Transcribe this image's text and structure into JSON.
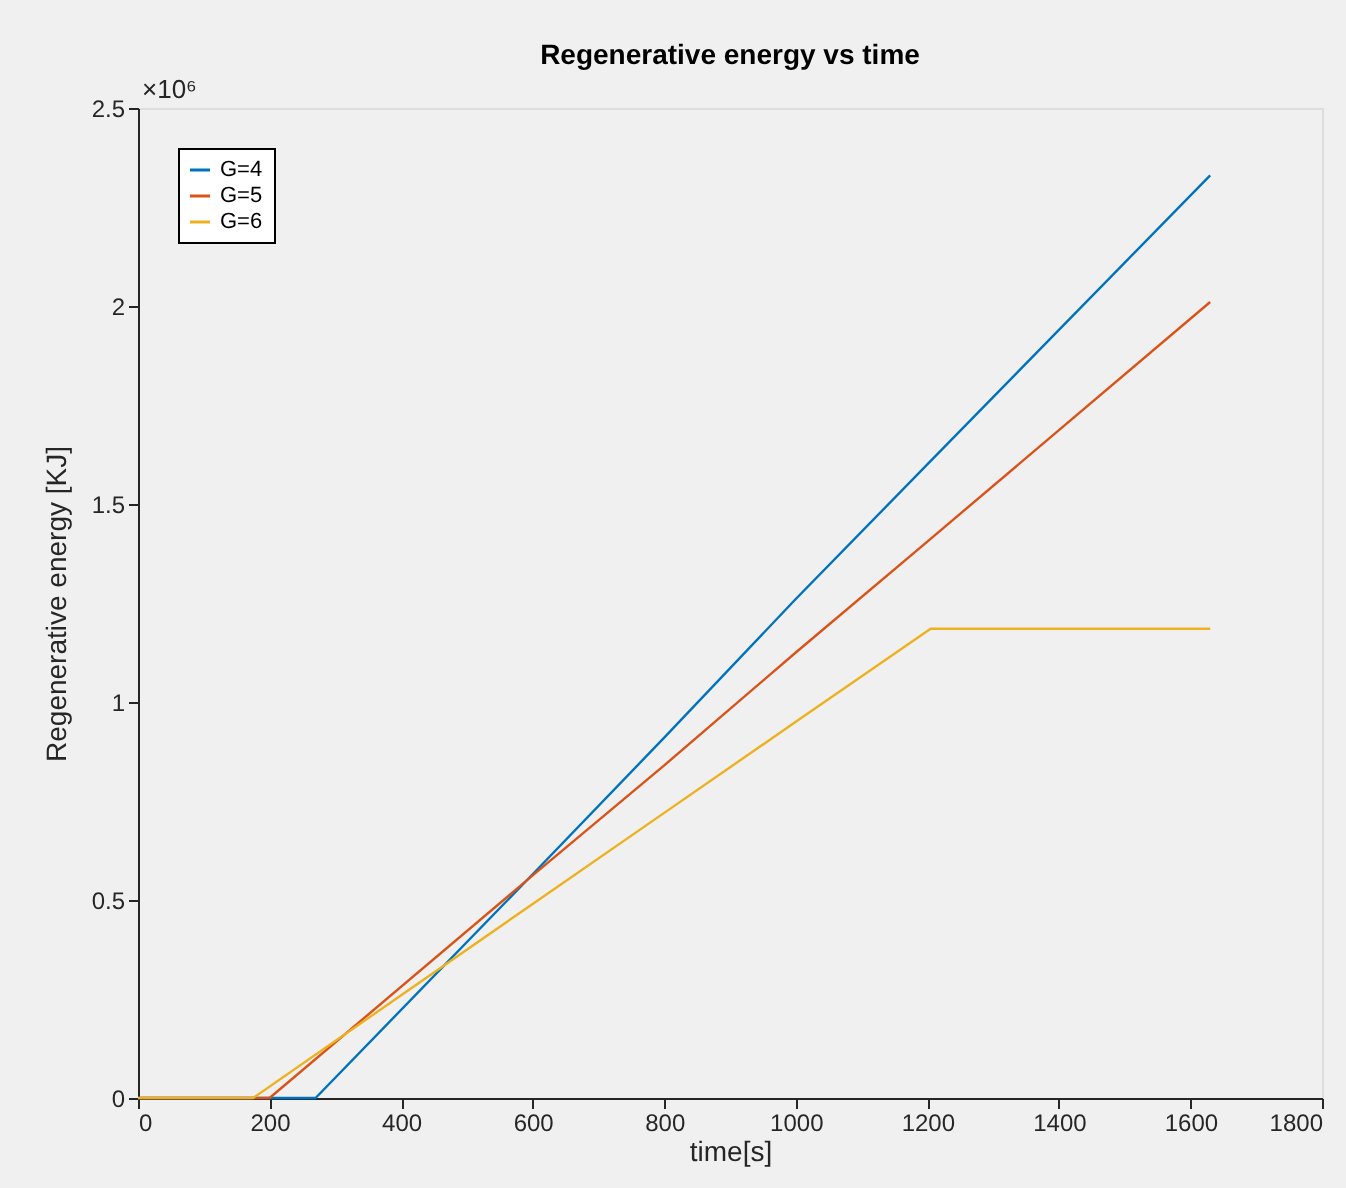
{
  "chart_data": {
    "type": "line",
    "title": "Regenerative energy vs time",
    "xlabel": "time[s]",
    "ylabel": "Regenerative energy [KJ]",
    "annotations": [
      "×10⁶"
    ],
    "series": [
      {
        "name": "G=4",
        "color": "#0072bd",
        "x": [
          0,
          270,
          600,
          800,
          1000,
          1200,
          1630
        ],
        "values": [
          0,
          0,
          0.565,
          0.91,
          1.26,
          1.6,
          2.33
        ]
      },
      {
        "name": "G=5",
        "color": "#d95319",
        "x": [
          0,
          200,
          600,
          800,
          1000,
          1200,
          1630
        ],
        "values": [
          0,
          0,
          0.562,
          0.84,
          1.125,
          1.405,
          2.01
        ]
      },
      {
        "name": "G=6",
        "color": "#edb120",
        "x": [
          0,
          175,
          600,
          800,
          1000,
          1205,
          1630
        ],
        "values": [
          0,
          0,
          0.49,
          0.72,
          0.95,
          1.185,
          1.185
        ]
      }
    ],
    "xlim": [
      0,
      1800
    ],
    "xticks": [
      0,
      200,
      400,
      600,
      800,
      1000,
      1200,
      1400,
      1600,
      1800
    ],
    "ylim": [
      0,
      2.5
    ],
    "yticks": [
      0,
      0.5,
      1,
      1.5,
      2,
      2.5
    ],
    "grid": false,
    "legend": "top left",
    "marker": "none",
    "line_style": "solid"
  }
}
